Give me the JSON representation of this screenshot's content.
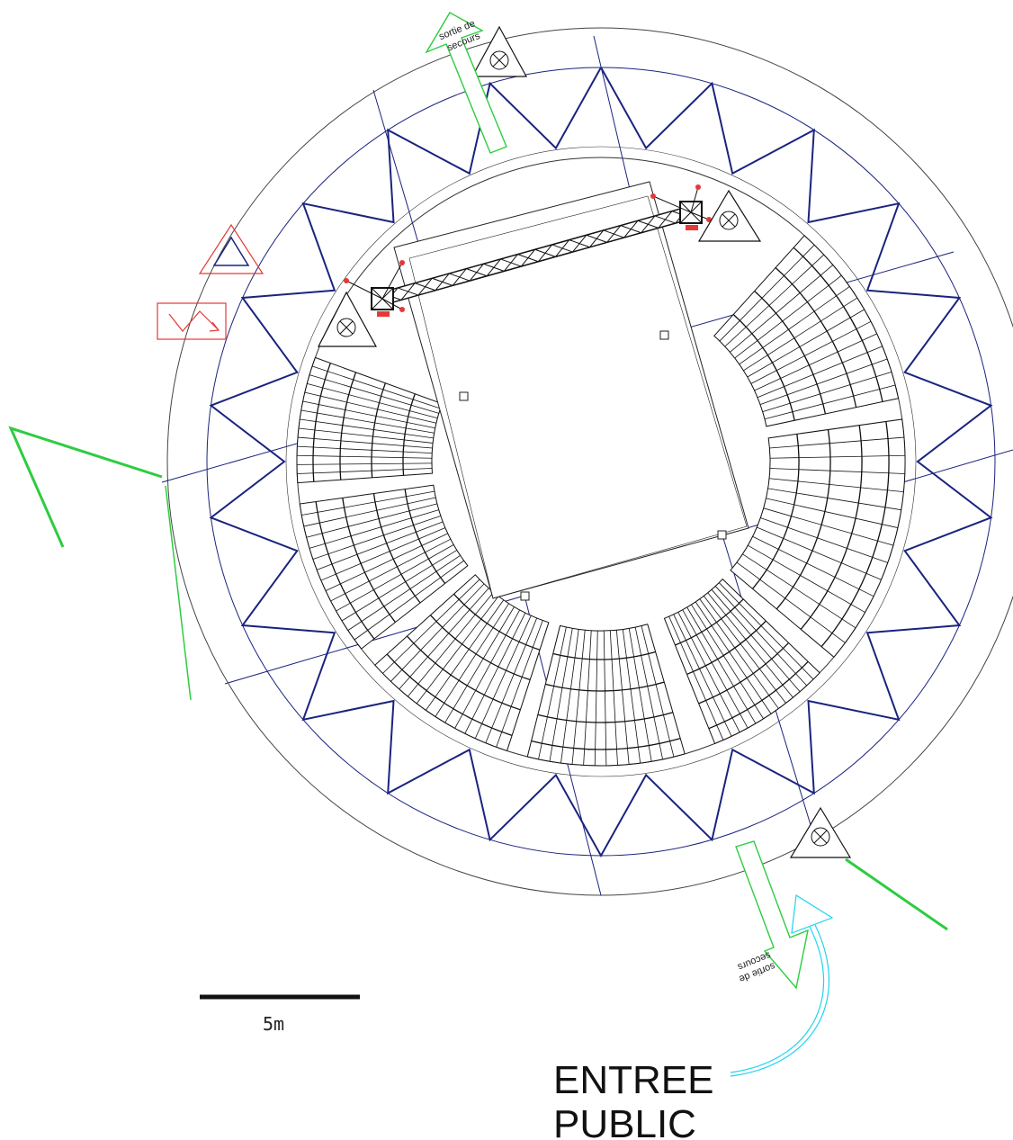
{
  "labels": {
    "exit_top_line1": "sortie de",
    "exit_top_line2": "secours",
    "exit_bottom_line1": "sortie de",
    "exit_bottom_line2": "secours",
    "scale": "5m",
    "entrance_line1": "ENTREE",
    "entrance_line2": "PUBLIC"
  },
  "colors": {
    "outline": "#333333",
    "tent_ribs": "#1a237e",
    "exit_arrow": "#2ecc40",
    "entrance_arrow": "#22d3ee",
    "fire_equipment": "#e53935",
    "stroke_dark": "#111111"
  },
  "icons": [
    "emergency-light-icon",
    "fire-alarm-icon",
    "fire-extinguisher-icon",
    "exit-arrow-icon",
    "entrance-arrow-icon"
  ]
}
